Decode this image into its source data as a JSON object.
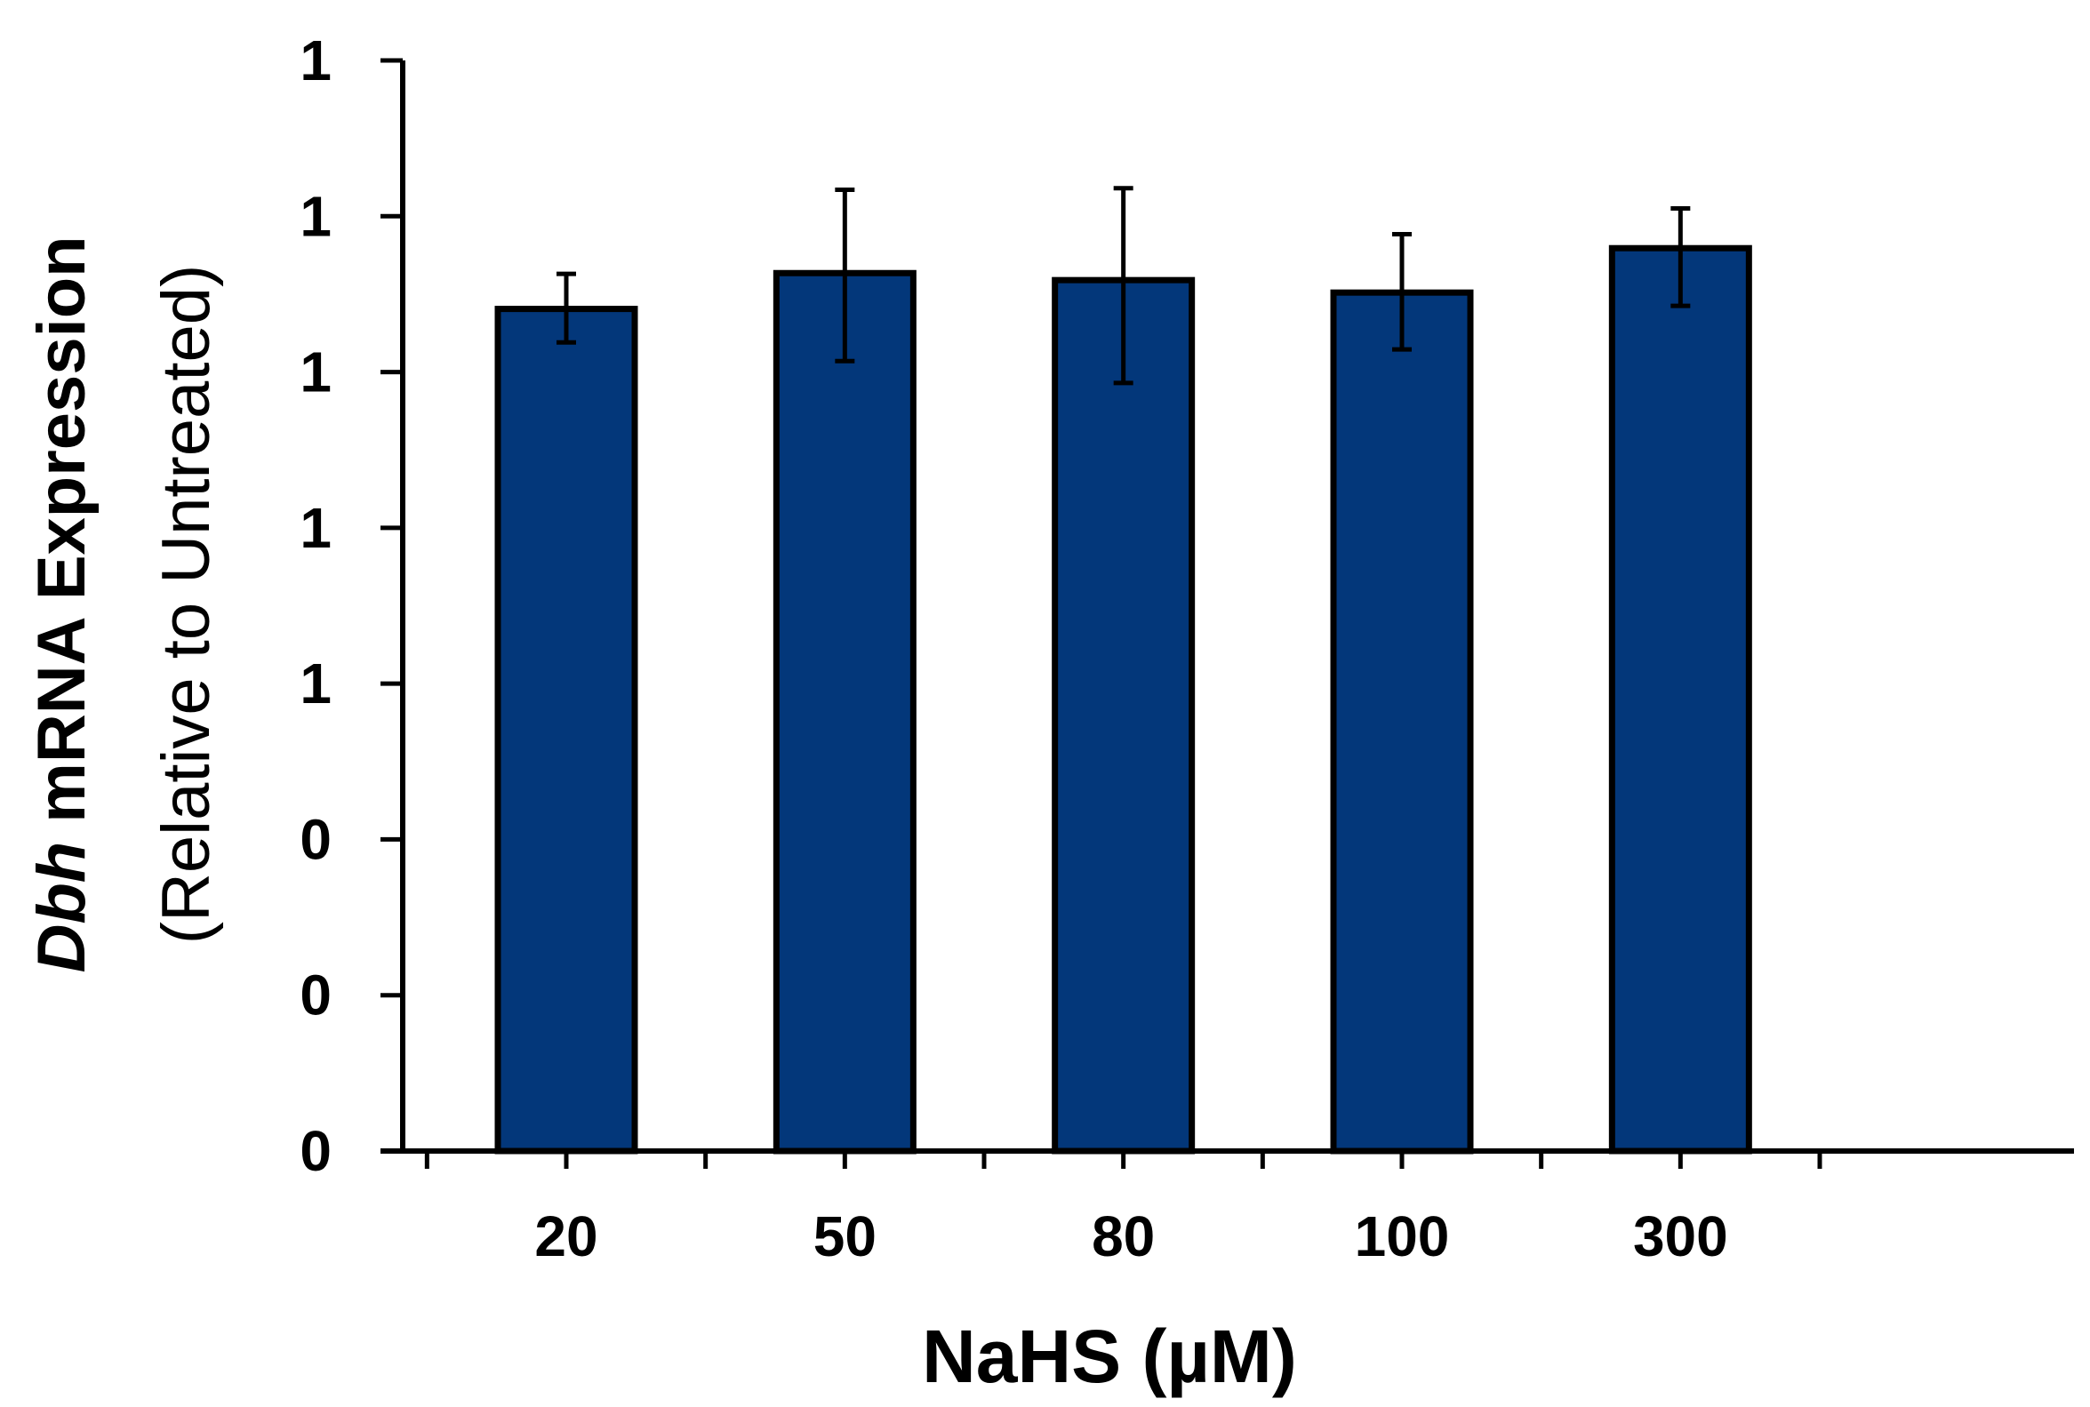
{
  "chart_data": {
    "type": "bar",
    "categories": [
      "20",
      "50",
      "80",
      "100",
      "300"
    ],
    "values": [
      1.081,
      1.127,
      1.118,
      1.102,
      1.159
    ],
    "error_upper": [
      1.126,
      1.234,
      1.236,
      1.177,
      1.21
    ],
    "error_lower": [
      1.038,
      1.014,
      0.986,
      1.029,
      1.085
    ],
    "ylim": [
      0,
      1.4
    ],
    "yticks": [
      0,
      0.2,
      0.4,
      0.6,
      0.8,
      1.0,
      1.2,
      1.4
    ],
    "ytick_labels": [
      "0",
      "0",
      "0",
      "1",
      "1",
      "1",
      "1",
      "1"
    ],
    "xlabel": "NaHS (µM)",
    "ylabel_gene": "Dbh",
    "ylabel_rest": " mRNA Expression",
    "ylabel_line2": "(Relative to Untreated)",
    "bar_color": "#03377A",
    "grid": false
  }
}
